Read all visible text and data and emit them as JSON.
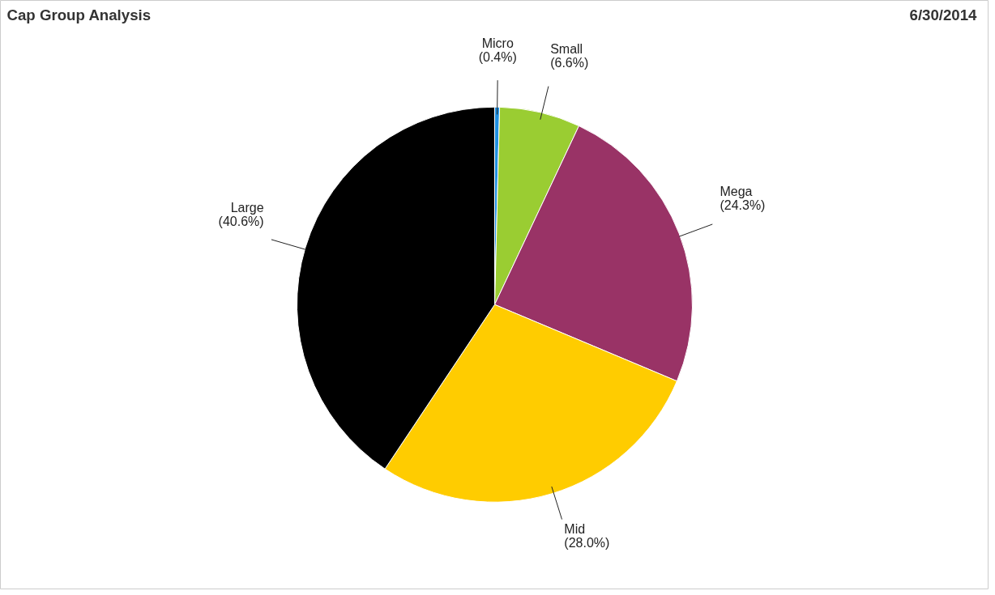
{
  "chart_data": {
    "type": "pie",
    "title": "Cap Group Analysis",
    "annotations": [
      "6/30/2014"
    ],
    "categories": [
      "Micro",
      "Small",
      "Mega",
      "Mid",
      "Large"
    ],
    "values": [
      0.4,
      6.6,
      24.3,
      28.0,
      40.6
    ],
    "value_labels": [
      "(0.4%)",
      "(6.6%)",
      "(24.3%)",
      "(28.0%)",
      "(40.6%)"
    ],
    "colors": [
      "#1f8fe0",
      "#9acd32",
      "#993366",
      "#ffcc00",
      "#000000"
    ]
  }
}
